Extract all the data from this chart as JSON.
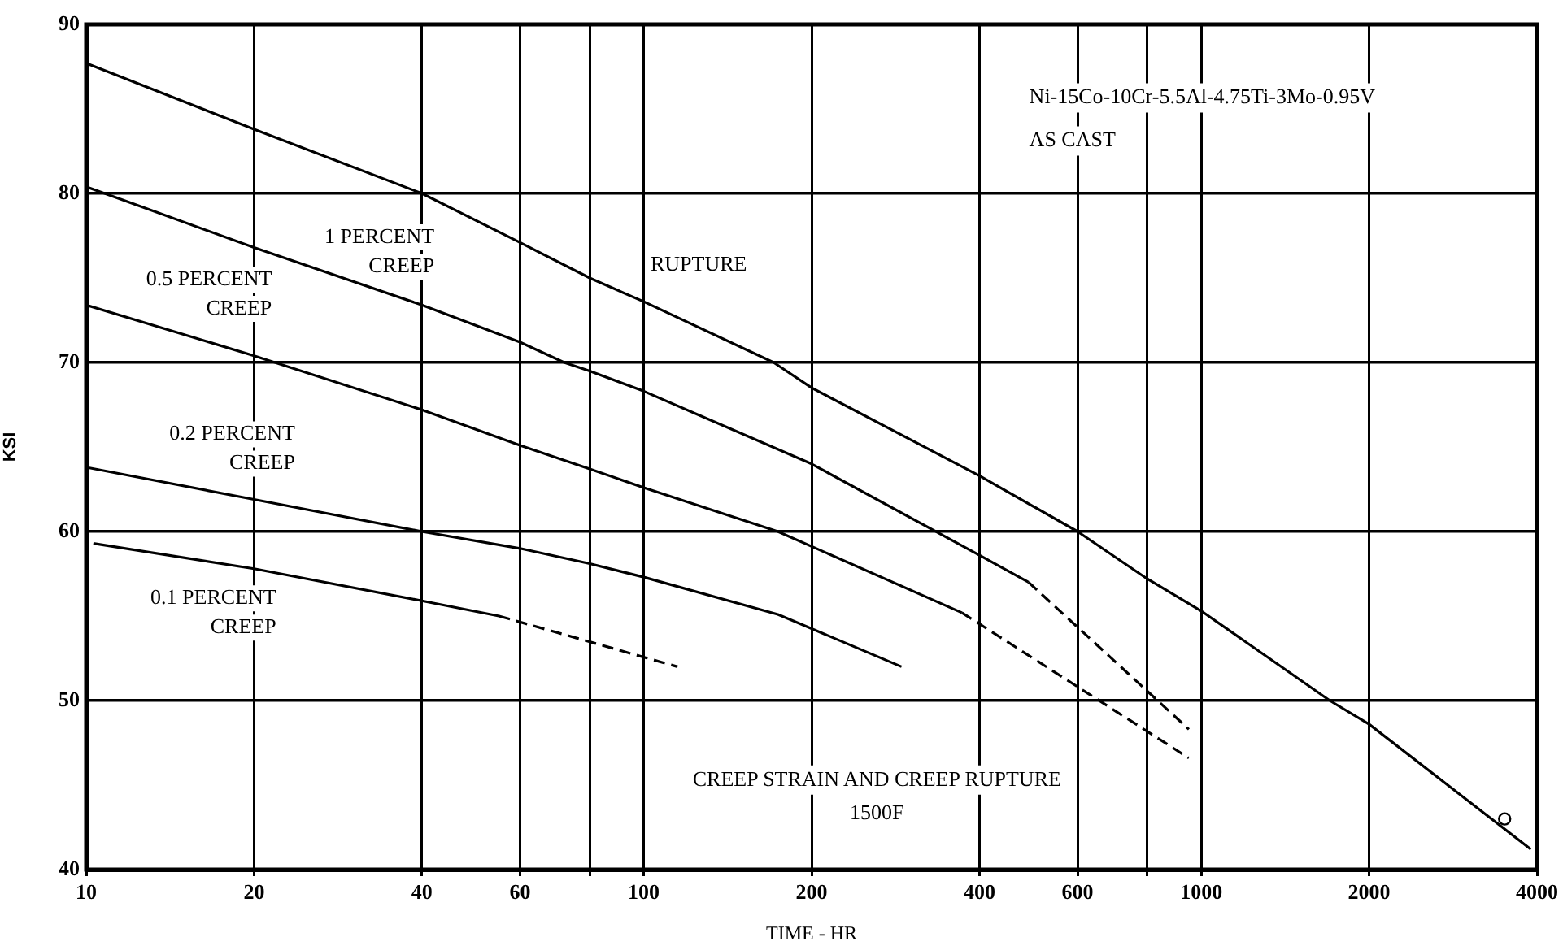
{
  "chart_data": {
    "type": "line",
    "title": "CREEP STRAIN AND CREEP RUPTURE",
    "subtitle": "1500F",
    "xlabel": "TIME - HR",
    "ylabel": "KSI",
    "annotations": [
      "Ni-15Co-10Cr-5.5Al-4.75Ti-3Mo-0.95V",
      "AS CAST"
    ],
    "log": "x",
    "xlim": [
      10,
      4000
    ],
    "xticks": [
      10,
      20,
      40,
      60,
      {
        "value": 80,
        "label": null
      },
      100,
      200,
      400,
      600,
      {
        "value": 800,
        "label": null
      },
      1000,
      2000,
      4000
    ],
    "ylim": [
      40,
      90
    ],
    "yticks": [
      40,
      50,
      60,
      70,
      80,
      90
    ],
    "grid": true,
    "legend": false,
    "marker": "none",
    "series": [
      {
        "name": "RUPTURE",
        "color": "#000000",
        "line_style": "solid",
        "x": [
          10,
          20,
          40,
          60,
          80,
          100,
          171,
          200,
          400,
          600,
          800,
          1000,
          1700,
          2000,
          3900
        ],
        "values": [
          87.7,
          83.8,
          80,
          77.1,
          75,
          73.6,
          70,
          68.5,
          63.3,
          60,
          57.2,
          55.3,
          50,
          48.6,
          41.2
        ]
      },
      {
        "name": "1 PERCENT CREEP",
        "color": "#000000",
        "line_style": "solid",
        "x": [
          10,
          20,
          40,
          60,
          72,
          80,
          100,
          200,
          400,
          490
        ],
        "values": [
          80.4,
          76.8,
          73.4,
          71.2,
          70,
          69.5,
          68.3,
          64,
          58.6,
          57
        ]
      },
      {
        "color": "#000000",
        "line_style": "dashed",
        "x": [
          490,
          950
        ],
        "values": [
          57,
          48.3
        ]
      },
      {
        "name": "0.5 PERCENT CREEP",
        "color": "#000000",
        "line_style": "solid",
        "x": [
          10,
          20,
          40,
          60,
          80,
          100,
          174,
          372
        ],
        "values": [
          73.4,
          70.4,
          67.2,
          65.1,
          63.7,
          62.6,
          60,
          55.2
        ]
      },
      {
        "color": "#000000",
        "line_style": "dashed",
        "x": [
          372,
          950
        ],
        "values": [
          55.2,
          46.6
        ]
      },
      {
        "name": "0.2 PERCENT CREEP",
        "color": "#000000",
        "line_style": "solid",
        "x": [
          10,
          20,
          40,
          60,
          80,
          100,
          174,
          290
        ],
        "values": [
          63.8,
          61.9,
          60,
          59,
          58.1,
          57.3,
          55.1,
          52
        ]
      },
      {
        "name": "0.1 PERCENT CREEP",
        "color": "#000000",
        "line_style": "solid",
        "x": [
          10.3,
          20,
          40,
          55
        ],
        "values": [
          59.3,
          57.8,
          55.9,
          55
        ]
      },
      {
        "color": "#000000",
        "line_style": "dashed",
        "x": [
          55,
          115
        ],
        "values": [
          55,
          52
        ]
      },
      {
        "type": "scatter",
        "color": "#000000",
        "marker": "circle",
        "x": [
          3500
        ],
        "values": [
          43
        ]
      }
    ]
  }
}
